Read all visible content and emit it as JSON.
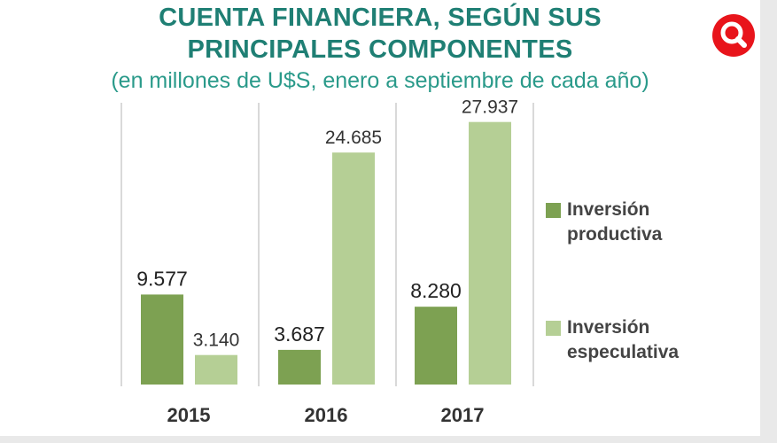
{
  "header": {
    "title_line1": "CUENTA FINANCIERA, SEGÚN SUS",
    "title_line2": "PRINCIPALES COMPONENTES",
    "subtitle": "(en millones de U$S, enero a septiembre de cada año)",
    "search_icon": "search-icon"
  },
  "colors": {
    "title": "#1f7f74",
    "productiva": "#7da152",
    "especulativa": "#b5cf95",
    "search": "#e8141b"
  },
  "legend": [
    {
      "line1": "Inversión",
      "line2": "productiva"
    },
    {
      "line1": "Inversión",
      "line2": "especulativa"
    }
  ],
  "chart_data": {
    "type": "bar",
    "categories": [
      "2015",
      "2016",
      "2017"
    ],
    "series": [
      {
        "name": "Inversión productiva",
        "values": [
          9577,
          3687,
          8280
        ],
        "labels": [
          "9.577",
          "3.687",
          "8.280"
        ]
      },
      {
        "name": "Inversión especulativa",
        "values": [
          3140,
          24685,
          27937
        ],
        "labels": [
          "3.140",
          "24.685",
          "27.937"
        ]
      }
    ],
    "ylim": [
      0,
      28000
    ],
    "grid": false,
    "legend_position": "right"
  }
}
